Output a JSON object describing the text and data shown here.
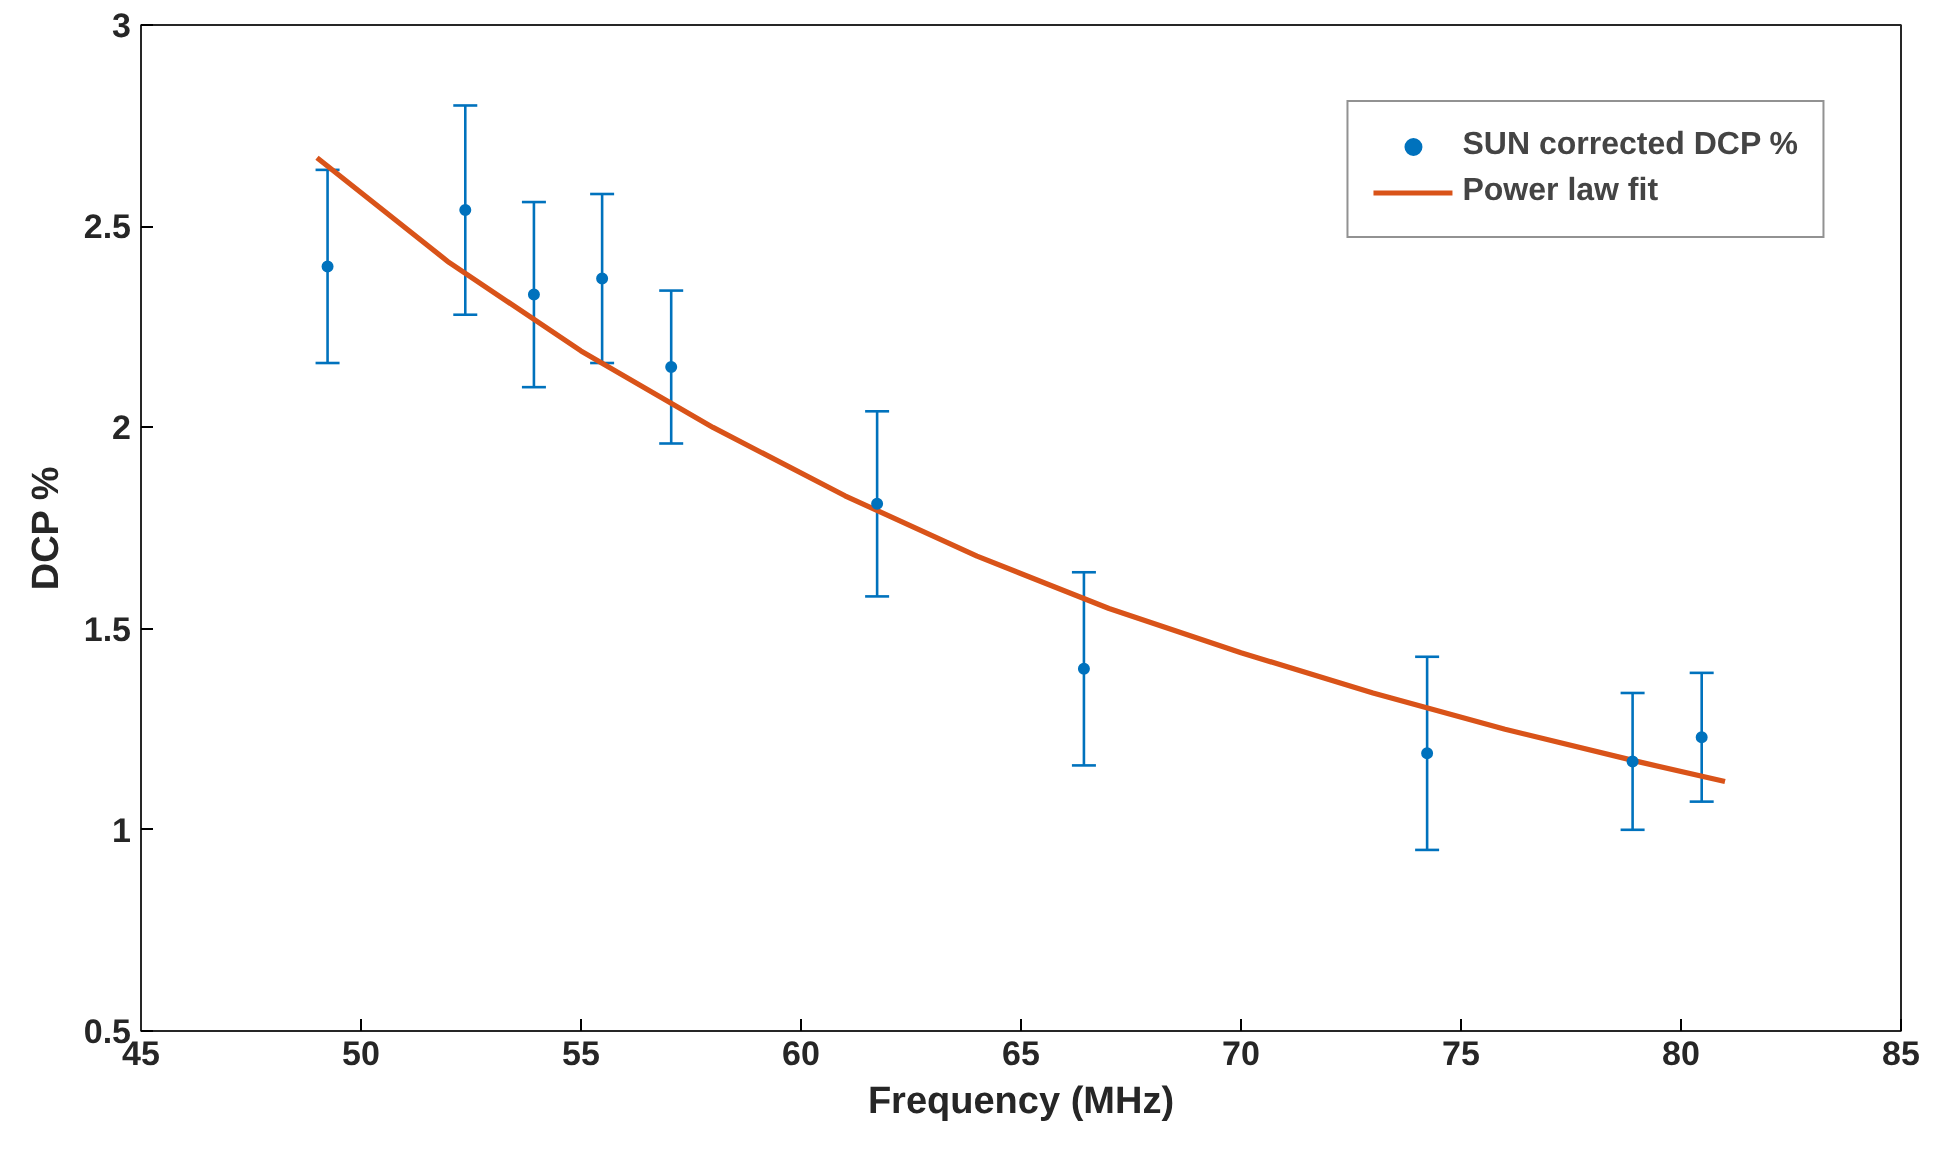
{
  "chart_data": {
    "type": "scatter",
    "xlabel": "Frequency (MHz)",
    "ylabel": "DCP %",
    "xlim": [
      45,
      85
    ],
    "xticks": [
      45,
      50,
      55,
      60,
      65,
      70,
      75,
      80,
      85
    ],
    "ylim": [
      0.5,
      3
    ],
    "yticks": [
      0.5,
      1,
      1.5,
      2,
      2.5,
      3
    ],
    "grid": false,
    "legend": "top right",
    "series": [
      {
        "name": "SUN corrected DCP %",
        "marker": "circle",
        "color": "#0072bd",
        "x": [
          49.24,
          52.37,
          53.93,
          55.48,
          57.05,
          61.73,
          66.43,
          74.23,
          78.9,
          80.47
        ],
        "values": [
          2.4,
          2.54,
          2.33,
          2.37,
          2.15,
          1.81,
          1.4,
          1.19,
          1.17,
          1.23
        ],
        "errors": [
          0.24,
          0.26,
          0.23,
          0.21,
          0.19,
          0.23,
          0.24,
          0.24,
          0.17,
          0.16
        ]
      },
      {
        "name": "Power law fit",
        "type": "line",
        "color": "#d95319",
        "line_style": "solid",
        "x": [
          49,
          52,
          55,
          58,
          61,
          64,
          67,
          70,
          73,
          76,
          79,
          81
        ],
        "values": [
          2.67,
          2.41,
          2.19,
          2.0,
          1.83,
          1.68,
          1.55,
          1.44,
          1.34,
          1.25,
          1.17,
          1.12
        ]
      }
    ]
  }
}
